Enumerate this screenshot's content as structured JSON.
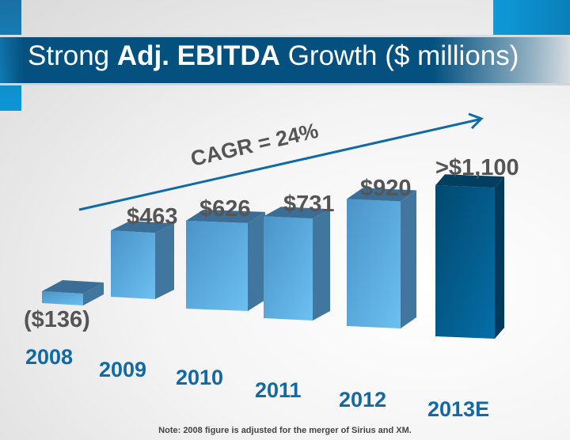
{
  "title": {
    "part1": "Strong ",
    "bold": "Adj. EBITDA",
    "part2": " Growth ($ millions)"
  },
  "cagr_label": "CAGR = 24%",
  "note": "Note: 2008 figure is adjusted for the merger of Sirius and XM.",
  "colors": {
    "bar": "#5aaee3",
    "bar_estimate": "#03649a",
    "arrow": "#0f6aa6",
    "year": "#0f6aa6"
  },
  "chart_data": {
    "type": "bar",
    "title": "Strong Adj. EBITDA Growth ($ millions)",
    "categories": [
      "2008",
      "2009",
      "2010",
      "2011",
      "2012",
      "2013E"
    ],
    "values": [
      -136,
      463,
      626,
      731,
      920,
      1100
    ],
    "labels": [
      "($136)",
      "$463",
      "$626",
      "$731",
      "$920",
      ">$1,100"
    ],
    "estimate": [
      false,
      false,
      false,
      false,
      false,
      true
    ],
    "annotation": "CAGR = 24%",
    "xlabel": "",
    "ylabel": "$ millions"
  }
}
